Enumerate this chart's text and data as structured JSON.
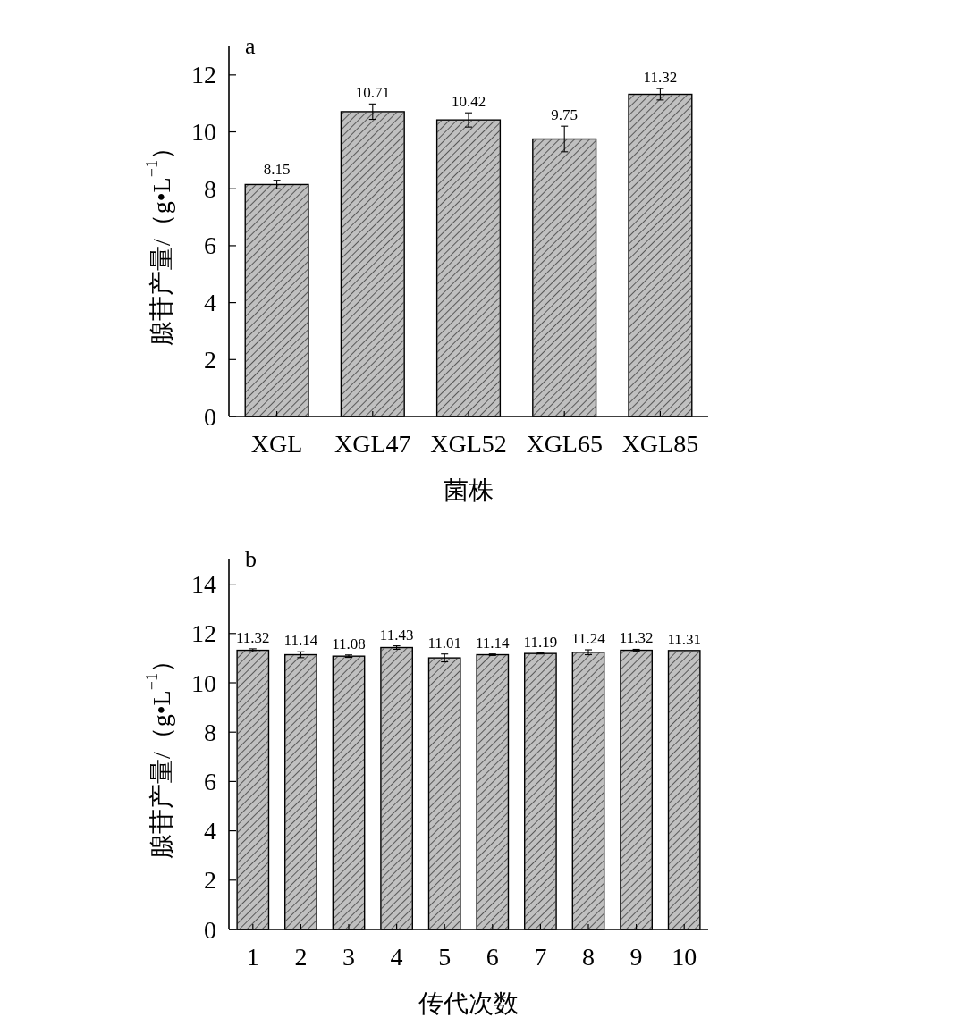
{
  "chart_data": [
    {
      "type": "bar",
      "title": "a",
      "xlabel": "菌株",
      "ylabel": "腺苷产量/（g•L$^{−1}$）",
      "categories": [
        "XGL",
        "XGL47",
        "XGL52",
        "XGL65",
        "XGL85"
      ],
      "values": [
        8.15,
        10.71,
        10.42,
        9.75,
        11.32
      ],
      "errors": [
        0.15,
        0.27,
        0.25,
        0.45,
        0.2
      ],
      "color": "#c0c0c0",
      "ylim": [
        0,
        13
      ],
      "yticks": [
        0,
        2,
        4,
        6,
        8,
        10,
        12
      ],
      "data_labels": true
    },
    {
      "type": "bar",
      "title": "b",
      "xlabel": "传代次数",
      "ylabel": "腺苷产量/（g•L$^{−1}$）",
      "categories": [
        "1",
        "2",
        "3",
        "4",
        "5",
        "6",
        "7",
        "8",
        "9",
        "10"
      ],
      "values": [
        11.32,
        11.14,
        11.08,
        11.43,
        11.01,
        11.14,
        11.19,
        11.24,
        11.32,
        11.31
      ],
      "errors": [
        0.06,
        0.12,
        0.05,
        0.07,
        0.16,
        0.03,
        0.02,
        0.1,
        0.04,
        null
      ],
      "color": "#c0c0c0",
      "ylim": [
        0,
        15
      ],
      "yticks": [
        0,
        2,
        4,
        6,
        8,
        10,
        12,
        14
      ],
      "data_labels": true
    }
  ]
}
